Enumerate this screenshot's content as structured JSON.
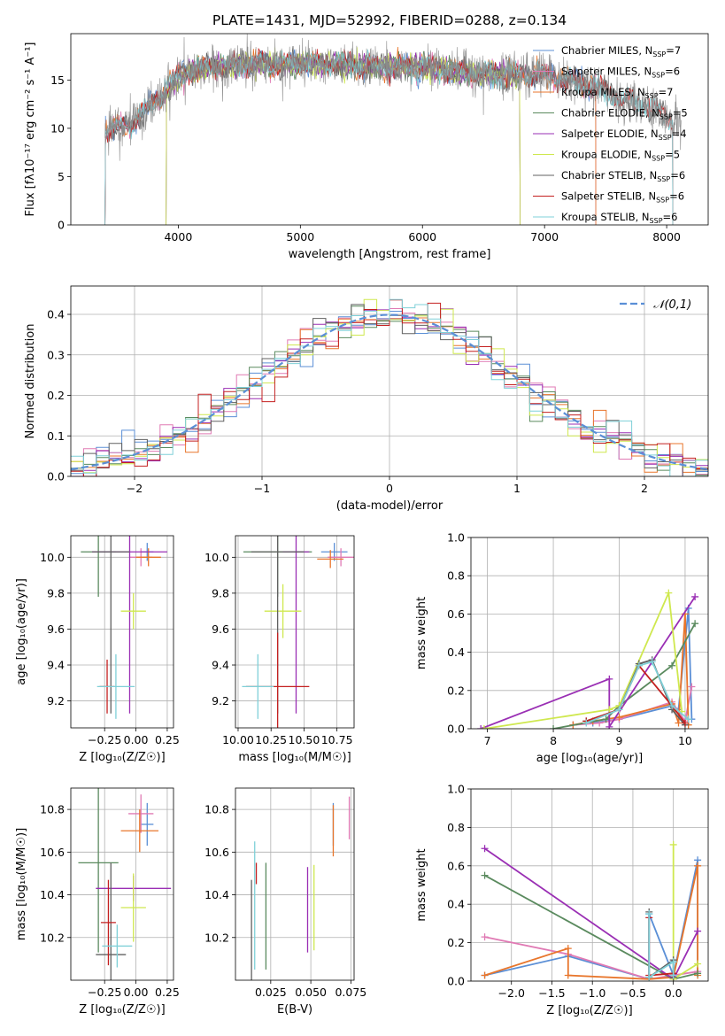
{
  "colors": {
    "chabrier_miles": "#5b8fd6",
    "salpeter_miles": "#e07ab4",
    "kroupa_miles": "#e8762c",
    "chabrier_elodie": "#5a8a5e",
    "salpeter_elodie": "#9a2fb4",
    "kroupa_elodie": "#cfe84f",
    "chabrier_stelib": "#606060",
    "salpeter_stelib": "#c42020",
    "kroupa_stelib": "#7fd0d8",
    "normal": "#5b8fd6"
  },
  "chart_data": [
    {
      "id": "spectrum",
      "type": "line",
      "title": "PLATE=1431, MJD=52992, FIBERID=0288, z=0.134",
      "xlabel": "wavelength [Angstrom, rest frame]",
      "ylabel": "Flux [fλ10⁻¹⁷ erg cm⁻² s⁻¹ A⁻¹]",
      "xlim": [
        3120,
        8340
      ],
      "ylim": [
        0,
        19.8
      ],
      "xticks": [
        "4000",
        "5000",
        "6000",
        "7000",
        "8000"
      ],
      "yticks": [
        "0",
        "5",
        "10",
        "15"
      ],
      "legend_position": "right",
      "legend": [
        "Chabrier MILES, NSSP=7",
        "Salpeter MILES, NSSP=6",
        "Kroupa MILES, NSSP=7",
        "Chabrier ELODIE, NSSP=5",
        "Salpeter ELODIE, NSSP=4",
        "Kroupa ELODIE, NSSP=5",
        "Chabrier STELIB, NSSP=6",
        "Salpeter STELIB, NSSP=6",
        "Kroupa STELIB, NSSP=6"
      ],
      "approx_continuum": {
        "x": [
          3400,
          3600,
          3800,
          4000,
          4200,
          4500,
          5000,
          5500,
          6000,
          6500,
          7000,
          7400,
          7800,
          8100
        ],
        "y": [
          9.8,
          10.3,
          12.5,
          15.5,
          16.2,
          16.6,
          16.7,
          16.5,
          16.3,
          15.6,
          15.5,
          14.3,
          12.5,
          10.5
        ]
      },
      "model_ranges": {
        "miles": [
          3400,
          7420
        ],
        "elodie": [
          3900,
          6800
        ],
        "stelib": [
          3400,
          8050
        ]
      }
    },
    {
      "id": "residuals",
      "type": "histogram",
      "xlabel": "(data-model)/error",
      "ylabel": "Normed distribution",
      "xlim": [
        -2.5,
        2.5
      ],
      "ylim": [
        0,
        0.47
      ],
      "xticks": [
        "−2",
        "−1",
        "0",
        "1",
        "2"
      ],
      "yticks": [
        "0.0",
        "0.1",
        "0.2",
        "0.3",
        "0.4"
      ],
      "grid": true,
      "legend_position": "top-right",
      "legend": [
        "𝒩(0,1)"
      ],
      "bin_width": 0.1,
      "bin_start": -2.5
    },
    {
      "id": "age-vs-Z",
      "type": "scatter",
      "xlabel": "Z [log₁₀(Z/Z☉)]",
      "ylabel": "age  [log₁₀(age/yr)]",
      "xlim": [
        -0.52,
        0.3
      ],
      "ylim": [
        9.05,
        10.12
      ],
      "xticks": [
        "−0.25",
        "0.00",
        "0.25"
      ],
      "yticks": [
        "9.2",
        "9.4",
        "9.6",
        "9.8",
        "10.0"
      ],
      "grid": true,
      "points": [
        {
          "c": "chabrier_miles",
          "x": 0.09,
          "xe": 0.05,
          "y": 10.03,
          "ye": 0.05
        },
        {
          "c": "salpeter_miles",
          "x": 0.04,
          "xe": 0.09,
          "y": 10.0,
          "ye": 0.05
        },
        {
          "c": "kroupa_miles",
          "x": 0.1,
          "xe": 0.1,
          "y": 10.0,
          "ye": 0.05
        },
        {
          "c": "chabrier_elodie",
          "x": -0.3,
          "xe": 0.14,
          "y": 10.03,
          "ye": 0.25
        },
        {
          "c": "salpeter_elodie",
          "x": -0.05,
          "xe": 0.3,
          "y": 10.03,
          "ye": 0.9
        },
        {
          "c": "kroupa_elodie",
          "x": -0.02,
          "xe": 0.1,
          "y": 9.7,
          "ye": 0.1
        },
        {
          "c": "chabrier_stelib",
          "x": -0.2,
          "xe": 0.15,
          "y": 10.03,
          "ye": 0.9
        },
        {
          "c": "salpeter_stelib",
          "x": -0.23,
          "xe": 0.06,
          "y": 9.28,
          "ye": 0.15
        },
        {
          "c": "kroupa_stelib",
          "x": -0.16,
          "xe": 0.15,
          "y": 9.28,
          "ye": 0.18
        }
      ]
    },
    {
      "id": "age-vs-mass",
      "type": "scatter",
      "xlabel": "mass [log₁₀(M/M☉)]",
      "ylabel": "",
      "xlim": [
        9.98,
        10.88
      ],
      "ylim": [
        9.05,
        10.12
      ],
      "xticks": [
        "10.00",
        "10.25",
        "10.50",
        "10.75"
      ],
      "yticks": [
        "9.2",
        "9.4",
        "9.6",
        "9.8",
        "10.0"
      ],
      "grid": true,
      "points": [
        {
          "c": "chabrier_miles",
          "x": 10.73,
          "xe": 0.1,
          "y": 10.03,
          "ye": 0.05
        },
        {
          "c": "salpeter_miles",
          "x": 10.78,
          "xe": 0.1,
          "y": 10.0,
          "ye": 0.05
        },
        {
          "c": "kroupa_miles",
          "x": 10.7,
          "xe": 0.1,
          "y": 9.99,
          "ye": 0.05
        },
        {
          "c": "chabrier_elodie",
          "x": 10.3,
          "xe": 0.26,
          "y": 10.03,
          "ye": 0.25
        },
        {
          "c": "salpeter_elodie",
          "x": 10.44,
          "xe": 0.1,
          "y": 10.03,
          "ye": 0.9
        },
        {
          "c": "kroupa_elodie",
          "x": 10.34,
          "xe": 0.14,
          "y": 9.7,
          "ye": 0.15
        },
        {
          "c": "chabrier_stelib",
          "x": 10.3,
          "xe": 0.2,
          "y": 10.03,
          "ye": 0.9
        },
        {
          "c": "salpeter_stelib",
          "x": 10.3,
          "xe": 0.24,
          "y": 9.28,
          "ye": 0.3
        },
        {
          "c": "kroupa_stelib",
          "x": 10.15,
          "xe": 0.12,
          "y": 9.28,
          "ye": 0.18
        }
      ]
    },
    {
      "id": "mass-weight-vs-age",
      "type": "line",
      "xlabel": "age  [log₁₀(age/yr)]",
      "ylabel": "mass weight",
      "xlim": [
        6.75,
        10.35
      ],
      "ylim": [
        0,
        1.0
      ],
      "xticks": [
        "7",
        "8",
        "9",
        "10"
      ],
      "yticks": [
        "0.0",
        "0.2",
        "0.4",
        "0.6",
        "0.8",
        "1.0"
      ],
      "grid": true,
      "series": [
        {
          "c": "chabrier_miles",
          "x": [
            8.3,
            8.6,
            9.0,
            9.8,
            9.9,
            10.05,
            10.1
          ],
          "y": [
            0.02,
            0.03,
            0.05,
            0.12,
            0.1,
            0.63,
            0.05
          ]
        },
        {
          "c": "salpeter_miles",
          "x": [
            8.3,
            8.7,
            9.0,
            9.8,
            10.0,
            10.1
          ],
          "y": [
            0.02,
            0.03,
            0.05,
            0.14,
            0.04,
            0.22
          ]
        },
        {
          "c": "kroupa_miles",
          "x": [
            8.3,
            8.6,
            9.0,
            9.8,
            9.9,
            10.0,
            10.05
          ],
          "y": [
            0.02,
            0.04,
            0.06,
            0.13,
            0.03,
            0.6,
            0.02
          ]
        },
        {
          "c": "chabrier_elodie",
          "x": [
            8.0,
            8.8,
            9.0,
            9.8,
            10.15
          ],
          "y": [
            0.0,
            0.05,
            0.12,
            0.33,
            0.55
          ]
        },
        {
          "c": "salpeter_elodie",
          "x": [
            6.9,
            8.85,
            8.85,
            10.15
          ],
          "y": [
            0.0,
            0.26,
            0.01,
            0.69
          ]
        },
        {
          "c": "kroupa_elodie",
          "x": [
            6.95,
            8.85,
            9.0,
            9.75,
            9.95
          ],
          "y": [
            0.0,
            0.1,
            0.12,
            0.71,
            0.09
          ]
        },
        {
          "c": "chabrier_stelib",
          "x": [
            8.5,
            9.0,
            9.3,
            9.5,
            9.8,
            10.0
          ],
          "y": [
            0.04,
            0.1,
            0.34,
            0.36,
            0.1,
            0.02
          ]
        },
        {
          "c": "salpeter_stelib",
          "x": [
            8.5,
            9.0,
            9.3,
            9.8,
            10.0
          ],
          "y": [
            0.04,
            0.1,
            0.33,
            0.12,
            0.03
          ]
        },
        {
          "c": "kroupa_stelib",
          "x": [
            8.5,
            9.0,
            9.3,
            9.5,
            9.8,
            10.05
          ],
          "y": [
            0.03,
            0.1,
            0.33,
            0.35,
            0.12,
            0.05
          ]
        }
      ]
    },
    {
      "id": "mass-vs-Z",
      "type": "scatter",
      "xlabel": "Z [log₁₀(Z/Z☉)]",
      "ylabel": "mass [log₁₀(M/M☉)]",
      "xlim": [
        -0.52,
        0.3
      ],
      "ylim": [
        10.0,
        10.9
      ],
      "xticks": [
        "−0.25",
        "0.00",
        "0.25"
      ],
      "yticks": [
        "10.2",
        "10.4",
        "10.6",
        "10.8"
      ],
      "grid": true,
      "points": [
        {
          "c": "chabrier_miles",
          "x": 0.09,
          "xe": 0.05,
          "y": 10.73,
          "ye": 0.1
        },
        {
          "c": "salpeter_miles",
          "x": 0.04,
          "xe": 0.1,
          "y": 10.78,
          "ye": 0.09
        },
        {
          "c": "kroupa_miles",
          "x": 0.03,
          "xe": 0.15,
          "y": 10.7,
          "ye": 0.1
        },
        {
          "c": "chabrier_elodie",
          "x": -0.3,
          "xe": 0.16,
          "y": 10.55,
          "ye": 0.42
        },
        {
          "c": "salpeter_elodie",
          "x": -0.02,
          "xe": 0.3,
          "y": 10.43,
          "ye": 0.06
        },
        {
          "c": "kroupa_elodie",
          "x": -0.02,
          "xe": 0.1,
          "y": 10.34,
          "ye": 0.16
        },
        {
          "c": "chabrier_stelib",
          "x": -0.2,
          "xe": 0.12,
          "y": 10.12,
          "ye": 0.43
        },
        {
          "c": "salpeter_stelib",
          "x": -0.22,
          "xe": 0.06,
          "y": 10.27,
          "ye": 0.2
        },
        {
          "c": "kroupa_stelib",
          "x": -0.15,
          "xe": 0.12,
          "y": 10.16,
          "ye": 0.1
        }
      ]
    },
    {
      "id": "mass-vs-EBV",
      "type": "scatter",
      "xlabel": "E(B-V)",
      "ylabel": "",
      "xlim": [
        0.003,
        0.077
      ],
      "ylim": [
        10.0,
        10.9
      ],
      "xticks": [
        "0.025",
        "0.050",
        "0.075"
      ],
      "yticks": [
        "10.2",
        "10.4",
        "10.6",
        "10.8"
      ],
      "grid": true,
      "points": [
        {
          "c": "chabrier_miles",
          "x": 0.064,
          "xe": 0.0,
          "y": 10.73,
          "ye": 0.1
        },
        {
          "c": "salpeter_miles",
          "x": 0.074,
          "xe": 0.0,
          "y": 10.76,
          "ye": 0.1
        },
        {
          "c": "kroupa_miles",
          "x": 0.064,
          "xe": 0.0,
          "y": 10.7,
          "ye": 0.12
        },
        {
          "c": "chabrier_elodie",
          "x": 0.022,
          "xe": 0.0,
          "y": 10.3,
          "ye": 0.25
        },
        {
          "c": "salpeter_elodie",
          "x": 0.048,
          "xe": 0.0,
          "y": 10.33,
          "ye": 0.2
        },
        {
          "c": "kroupa_elodie",
          "x": 0.052,
          "xe": 0.0,
          "y": 10.34,
          "ye": 0.2
        },
        {
          "c": "chabrier_stelib",
          "x": 0.013,
          "xe": 0.0,
          "y": 10.22,
          "ye": 0.25
        },
        {
          "c": "salpeter_stelib",
          "x": 0.016,
          "xe": 0.0,
          "y": 10.5,
          "ye": 0.05
        },
        {
          "c": "kroupa_stelib",
          "x": 0.015,
          "xe": 0.0,
          "y": 10.35,
          "ye": 0.3
        }
      ]
    },
    {
      "id": "mass-weight-vs-Z",
      "type": "line",
      "xlabel": "Z [log₁₀(Z/Z☉)]",
      "ylabel": "mass weight",
      "xlim": [
        -2.5,
        0.43
      ],
      "ylim": [
        0,
        1.0
      ],
      "xticks": [
        "−2.0",
        "−1.5",
        "−1.0",
        "−0.5",
        "0.0"
      ],
      "yticks": [
        "0.0",
        "0.2",
        "0.4",
        "0.6",
        "0.8",
        "1.0"
      ],
      "grid": true,
      "series": [
        {
          "c": "chabrier_miles",
          "x": [
            -2.33,
            -1.3,
            -0.3,
            -0.3,
            0.0,
            0.3,
            0.3
          ],
          "y": [
            0.03,
            0.13,
            0.01,
            0.35,
            0.03,
            0.63,
            0.05
          ]
        },
        {
          "c": "salpeter_miles",
          "x": [
            -2.33,
            -1.3,
            -0.3,
            0.0,
            0.3
          ],
          "y": [
            0.23,
            0.14,
            0.01,
            0.03,
            0.05
          ]
        },
        {
          "c": "kroupa_miles",
          "x": [
            -2.33,
            -1.3,
            -1.3,
            -0.3,
            0.0,
            0.3,
            0.3
          ],
          "y": [
            0.03,
            0.17,
            0.03,
            0.01,
            0.02,
            0.6,
            0.03
          ]
        },
        {
          "c": "chabrier_elodie",
          "x": [
            -2.33,
            0.0,
            0.3
          ],
          "y": [
            0.55,
            0.01,
            0.04
          ]
        },
        {
          "c": "salpeter_elodie",
          "x": [
            -2.33,
            0.0,
            0.3
          ],
          "y": [
            0.69,
            0.01,
            0.26
          ]
        },
        {
          "c": "kroupa_elodie",
          "x": [
            0.0,
            0.0,
            0.3
          ],
          "y": [
            0.71,
            0.01,
            0.09
          ]
        },
        {
          "c": "chabrier_stelib",
          "x": [
            -0.3,
            -0.3,
            0.0,
            0.0
          ],
          "y": [
            0.36,
            0.02,
            0.11,
            0.02
          ]
        },
        {
          "c": "salpeter_stelib",
          "x": [
            -0.3,
            -0.3,
            0.0
          ],
          "y": [
            0.33,
            0.03,
            0.04
          ]
        },
        {
          "c": "kroupa_stelib",
          "x": [
            -0.3,
            -0.3,
            0.0,
            0.0
          ],
          "y": [
            0.35,
            0.02,
            0.1,
            0.03
          ]
        }
      ]
    }
  ]
}
